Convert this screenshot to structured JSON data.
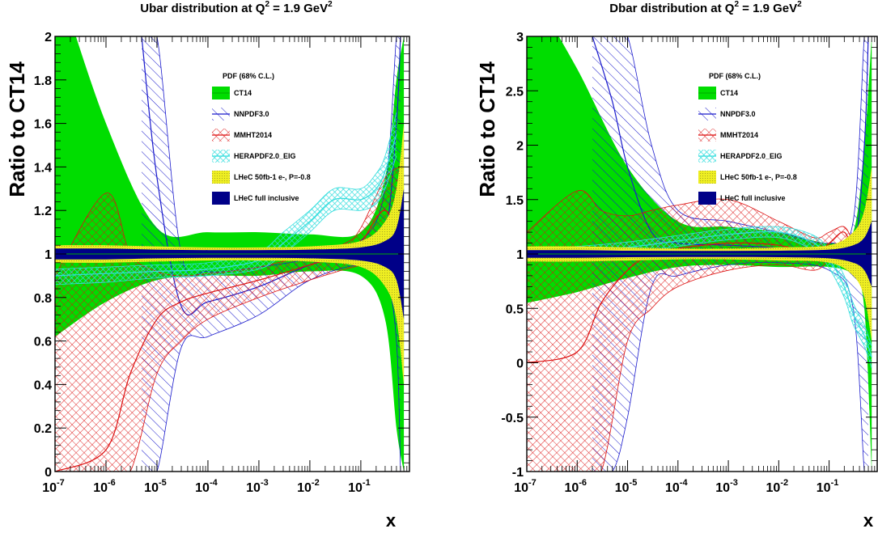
{
  "colors": {
    "ct14": "#00dd00",
    "nnpdf": "#1a1acc",
    "mmht": "#dd1111",
    "herapdf": "#33dddd",
    "lhec50": "#eeee22",
    "lhecfull": "#000088"
  },
  "chart_data": [
    {
      "type": "area",
      "title": "Ubar distribution at Q² = 1.9 GeV²",
      "title_main": "Ubar distribution at Q",
      "title_mid": " = 1.9 GeV",
      "title_sup": "2",
      "xlabel": "x",
      "ylabel": "Ratio to CT14",
      "xscale": "log",
      "xlim": [
        1e-07,
        0.9
      ],
      "ylim": [
        0,
        2
      ],
      "x_ticks": [
        {
          "base": "10",
          "exp": "-7",
          "value": 1e-07
        },
        {
          "base": "10",
          "exp": "-6",
          "value": 1e-06
        },
        {
          "base": "10",
          "exp": "-5",
          "value": 1e-05
        },
        {
          "base": "10",
          "exp": "-4",
          "value": 0.0001
        },
        {
          "base": "10",
          "exp": "-3",
          "value": 0.001
        },
        {
          "base": "10",
          "exp": "-2",
          "value": 0.01
        },
        {
          "base": "10",
          "exp": "-1",
          "value": 0.1
        }
      ],
      "y_ticks": [
        {
          "label": "0",
          "value": 0
        },
        {
          "label": "0.2",
          "value": 0.2
        },
        {
          "label": "0.4",
          "value": 0.4
        },
        {
          "label": "0.6",
          "value": 0.6
        },
        {
          "label": "0.8",
          "value": 0.8
        },
        {
          "label": "1",
          "value": 1
        },
        {
          "label": "1.2",
          "value": 1.2
        },
        {
          "label": "1.4",
          "value": 1.4
        },
        {
          "label": "1.6",
          "value": 1.6
        },
        {
          "label": "1.8",
          "value": 1.8
        },
        {
          "label": "2",
          "value": 2
        }
      ],
      "legend": {
        "header": "PDF (68% C.L.)",
        "placement": "top-right",
        "entries": [
          "CT14",
          "NNPDF3.0",
          "MMHT2014",
          "HERAPDF2.0_EIG",
          "LHeC 50fb-1 e-, P=-0.8",
          "LHeC full inclusive"
        ]
      },
      "series": [
        {
          "name": "CT14",
          "x": [
            1e-07,
            1e-06,
            1e-05,
            0.0001,
            0.001,
            0.01,
            0.1,
            0.3,
            0.5,
            0.7
          ],
          "central": [
            1,
            1,
            1,
            1,
            1,
            1,
            1,
            1,
            1,
            1
          ],
          "upper": [
            2.3,
            1.6,
            1.12,
            1.1,
            1.1,
            1.09,
            1.1,
            1.35,
            1.8,
            2.0
          ],
          "lower": [
            0.62,
            0.78,
            0.88,
            0.9,
            0.9,
            0.92,
            0.9,
            0.7,
            0.2,
            0.0
          ]
        },
        {
          "name": "NNPDF3.0",
          "x": [
            5e-06,
            1e-05,
            3e-05,
            0.0001,
            0.001,
            0.01,
            0.1,
            0.3,
            0.5,
            0.6
          ],
          "central": [
            2.0,
            1.35,
            0.76,
            0.78,
            0.85,
            0.95,
            1.02,
            1.1,
            1.6,
            2.0
          ],
          "upper": [
            2.0,
            2.0,
            1.0,
            0.92,
            0.94,
            0.98,
            1.06,
            1.3,
            2.0,
            2.0
          ],
          "lower": [
            0.0,
            0.0,
            0.57,
            0.62,
            0.72,
            0.88,
            0.95,
            0.9,
            0.6,
            0.0
          ]
        },
        {
          "name": "MMHT2014",
          "x": [
            1e-07,
            1e-06,
            3e-06,
            1e-05,
            3e-05,
            0.0001,
            0.001,
            0.01,
            0.05,
            0.1,
            0.3,
            0.6
          ],
          "central": [
            0.0,
            0.1,
            0.45,
            0.7,
            0.78,
            0.82,
            0.88,
            0.95,
            1.0,
            1.05,
            1.2,
            1.0
          ],
          "upper": [
            0.9,
            1.28,
            1.0,
            0.92,
            0.9,
            0.91,
            0.94,
            1.0,
            1.05,
            1.12,
            1.35,
            1.4
          ],
          "lower": [
            0.0,
            0.0,
            0.0,
            0.45,
            0.6,
            0.7,
            0.8,
            0.88,
            0.93,
            0.95,
            1.0,
            0.6
          ]
        },
        {
          "name": "HERAPDF2.0_EIG",
          "x": [
            1e-07,
            1e-06,
            1e-05,
            0.0001,
            0.001,
            0.003,
            0.01,
            0.03,
            0.1,
            0.2,
            0.3,
            0.5
          ],
          "central": [
            0.9,
            0.91,
            0.92,
            0.93,
            0.97,
            1.05,
            1.15,
            1.25,
            1.25,
            1.3,
            1.38,
            1.55
          ],
          "upper": [
            0.93,
            0.94,
            0.95,
            0.96,
            1.01,
            1.1,
            1.2,
            1.3,
            1.3,
            1.37,
            1.45,
            1.65
          ],
          "lower": [
            0.86,
            0.87,
            0.89,
            0.9,
            0.93,
            1.0,
            1.1,
            1.2,
            1.2,
            1.23,
            1.3,
            1.45
          ]
        },
        {
          "name": "LHeC 50fb-1 e-, P=-0.8",
          "x": [
            1e-07,
            1e-06,
            1e-05,
            0.0001,
            0.001,
            0.01,
            0.1,
            0.3,
            0.5,
            0.7
          ],
          "central": [
            1,
            1,
            1,
            1,
            1,
            1,
            1,
            1,
            1,
            1
          ],
          "upper": [
            1.04,
            1.04,
            1.035,
            1.03,
            1.03,
            1.035,
            1.06,
            1.15,
            1.3,
            1.6
          ],
          "lower": [
            0.96,
            0.96,
            0.965,
            0.97,
            0.97,
            0.965,
            0.94,
            0.85,
            0.7,
            0.4
          ]
        },
        {
          "name": "LHeC full inclusive",
          "x": [
            1e-07,
            1e-06,
            1e-05,
            0.0001,
            0.001,
            0.01,
            0.1,
            0.3,
            0.5,
            0.7
          ],
          "central": [
            1,
            1,
            1,
            1,
            1,
            1,
            1,
            1,
            1,
            1
          ],
          "upper": [
            1.025,
            1.025,
            1.02,
            1.018,
            1.018,
            1.02,
            1.03,
            1.06,
            1.12,
            1.3
          ],
          "lower": [
            0.975,
            0.975,
            0.98,
            0.982,
            0.982,
            0.98,
            0.97,
            0.94,
            0.88,
            0.7
          ]
        }
      ]
    },
    {
      "type": "area",
      "title": "Dbar distribution at Q² = 1.9 GeV²",
      "title_main": "Dbar distribution at Q",
      "title_mid": " = 1.9 GeV",
      "title_sup": "2",
      "xlabel": "x",
      "ylabel": "Ratio to CT14",
      "xscale": "log",
      "xlim": [
        1e-07,
        0.9
      ],
      "ylim": [
        -1,
        3
      ],
      "x_ticks": [
        {
          "base": "10",
          "exp": "-7",
          "value": 1e-07
        },
        {
          "base": "10",
          "exp": "-6",
          "value": 1e-06
        },
        {
          "base": "10",
          "exp": "-5",
          "value": 1e-05
        },
        {
          "base": "10",
          "exp": "-4",
          "value": 0.0001
        },
        {
          "base": "10",
          "exp": "-3",
          "value": 0.001
        },
        {
          "base": "10",
          "exp": "-2",
          "value": 0.01
        },
        {
          "base": "10",
          "exp": "-1",
          "value": 0.1
        }
      ],
      "y_ticks": [
        {
          "label": "-1",
          "value": -1
        },
        {
          "label": "-0.5",
          "value": -0.5
        },
        {
          "label": "0",
          "value": 0
        },
        {
          "label": "0.5",
          "value": 0.5
        },
        {
          "label": "1",
          "value": 1
        },
        {
          "label": "1.5",
          "value": 1.5
        },
        {
          "label": "2",
          "value": 2
        },
        {
          "label": "2.5",
          "value": 2.5
        },
        {
          "label": "3",
          "value": 3
        }
      ],
      "legend": {
        "header": "PDF (68% C.L.)",
        "placement": "top-right",
        "entries": [
          "CT14",
          "NNPDF3.0",
          "MMHT2014",
          "HERAPDF2.0_EIG",
          "LHeC 50fb-1 e-, P=-0.8",
          "LHeC full inclusive"
        ]
      },
      "series": [
        {
          "name": "CT14",
          "x": [
            1e-07,
            1e-06,
            1e-05,
            0.0001,
            0.001,
            0.01,
            0.1,
            0.3,
            0.5,
            0.7
          ],
          "central": [
            1,
            1,
            1,
            1,
            1,
            1,
            1,
            1,
            1,
            1
          ],
          "upper": [
            3.5,
            2.7,
            1.8,
            1.3,
            1.25,
            1.2,
            1.1,
            1.2,
            2.0,
            3.0
          ],
          "lower": [
            0.55,
            0.65,
            0.78,
            0.88,
            0.9,
            0.88,
            0.88,
            0.8,
            0.5,
            -1.0
          ]
        },
        {
          "name": "NNPDF3.0",
          "x": [
            2e-06,
            5e-06,
            1e-05,
            3e-05,
            0.0001,
            0.001,
            0.01,
            0.1,
            0.3,
            0.5,
            0.6
          ],
          "central": [
            3.0,
            2.4,
            1.8,
            1.2,
            1.1,
            1.08,
            1.05,
            0.95,
            1.0,
            2.0,
            3.0
          ],
          "upper": [
            3.0,
            3.0,
            3.0,
            2.0,
            1.4,
            1.3,
            1.2,
            1.1,
            1.3,
            3.0,
            3.0
          ],
          "lower": [
            -1.0,
            -1.0,
            -0.5,
            0.7,
            0.8,
            0.9,
            0.92,
            0.85,
            0.5,
            -1.0,
            -1.0
          ]
        },
        {
          "name": "MMHT2014",
          "x": [
            1e-07,
            1e-06,
            3e-06,
            1e-05,
            3e-05,
            0.0001,
            0.001,
            0.01,
            0.05,
            0.1,
            0.2,
            0.3
          ],
          "central": [
            0.0,
            0.1,
            0.55,
            0.85,
            1.0,
            1.05,
            1.1,
            1.08,
            1.0,
            1.1,
            1.2,
            1.0
          ],
          "upper": [
            1.2,
            1.58,
            1.4,
            1.35,
            1.4,
            1.45,
            1.5,
            1.3,
            1.15,
            1.2,
            1.25,
            1.1
          ],
          "lower": [
            -1.0,
            -1.0,
            -1.0,
            0.2,
            0.5,
            0.7,
            0.85,
            0.9,
            0.85,
            0.95,
            1.1,
            0.8
          ]
        },
        {
          "name": "HERAPDF2.0_EIG",
          "x": [
            1e-07,
            1e-06,
            1e-05,
            0.0001,
            0.001,
            0.01,
            0.05,
            0.1,
            0.2,
            0.3,
            0.5,
            0.7
          ],
          "central": [
            1.0,
            1.02,
            1.06,
            1.12,
            1.18,
            1.2,
            1.1,
            0.95,
            0.7,
            0.45,
            0.25,
            0.05
          ],
          "upper": [
            1.05,
            1.07,
            1.11,
            1.17,
            1.23,
            1.25,
            1.17,
            1.03,
            0.8,
            0.55,
            0.35,
            0.15
          ],
          "lower": [
            0.95,
            0.97,
            1.01,
            1.07,
            1.13,
            1.15,
            1.03,
            0.87,
            0.6,
            0.35,
            0.15,
            -0.05
          ]
        },
        {
          "name": "LHeC 50fb-1 e-, P=-0.8",
          "x": [
            1e-07,
            1e-06,
            1e-05,
            0.0001,
            0.001,
            0.01,
            0.1,
            0.3,
            0.5,
            0.7
          ],
          "central": [
            1,
            1,
            1,
            1,
            1,
            1,
            1,
            1,
            1,
            1
          ],
          "upper": [
            1.07,
            1.07,
            1.06,
            1.05,
            1.05,
            1.06,
            1.08,
            1.2,
            1.4,
            1.8
          ],
          "lower": [
            0.93,
            0.93,
            0.94,
            0.95,
            0.95,
            0.94,
            0.92,
            0.8,
            0.6,
            0.2
          ]
        },
        {
          "name": "LHeC full inclusive",
          "x": [
            1e-07,
            1e-06,
            1e-05,
            0.0001,
            0.001,
            0.01,
            0.1,
            0.3,
            0.5,
            0.7
          ],
          "central": [
            1,
            1,
            1,
            1,
            1,
            1,
            1,
            1,
            1,
            1
          ],
          "upper": [
            1.035,
            1.035,
            1.03,
            1.028,
            1.028,
            1.03,
            1.04,
            1.08,
            1.15,
            1.3
          ],
          "lower": [
            0.965,
            0.965,
            0.97,
            0.972,
            0.972,
            0.97,
            0.96,
            0.92,
            0.85,
            0.7
          ]
        }
      ]
    }
  ]
}
